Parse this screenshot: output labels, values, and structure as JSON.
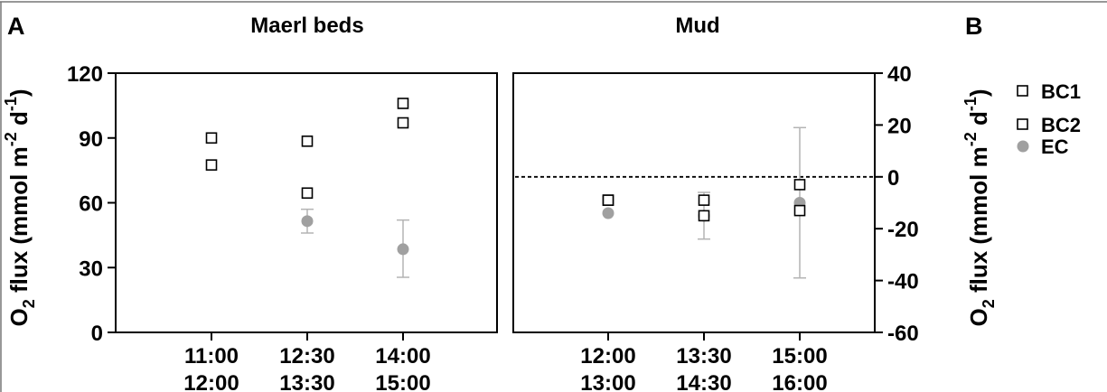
{
  "colors": {
    "ec": "#a0a0a0",
    "errbar": "#b4b4b4",
    "bc": "#000000"
  },
  "chart_data": [
    {
      "type": "scatter",
      "panel_label": "A",
      "title": "Maerl beds",
      "ylabel_parts": [
        "O",
        "2",
        " flux (mmol m",
        "-2",
        " d",
        "-1",
        ")"
      ],
      "ylim": [
        0,
        120
      ],
      "yticks": [
        0,
        30,
        60,
        90,
        120
      ],
      "categories": [
        {
          "line1": "11:00",
          "line2": "12:00"
        },
        {
          "line1": "12:30",
          "line2": "13:30"
        },
        {
          "line1": "14:00",
          "line2": "15:00"
        }
      ],
      "series": [
        {
          "name": "BC1",
          "marker": "square-open",
          "values": [
            77.5,
            64.5,
            97
          ]
        },
        {
          "name": "BC2",
          "marker": "square-open",
          "values": [
            90,
            88.5,
            106
          ]
        },
        {
          "name": "EC",
          "marker": "circle-filled",
          "values": [
            null,
            51.5,
            38.5
          ],
          "err_low": [
            null,
            46,
            25.5
          ],
          "err_high": [
            null,
            57,
            52
          ]
        }
      ]
    },
    {
      "type": "scatter",
      "panel_label": "B",
      "title": "Mud",
      "ylabel_parts": [
        "O",
        "2",
        " flux (mmol m",
        "-2",
        " d",
        "-1",
        ")"
      ],
      "ylim": [
        -60,
        40
      ],
      "yticks": [
        -60,
        -40,
        -20,
        0,
        20,
        40
      ],
      "ytick_labels": [
        "-60",
        "-40",
        "-20",
        "0",
        "20",
        "40"
      ],
      "reference_line": 0,
      "categories": [
        {
          "line1": "12:00",
          "line2": "13:00"
        },
        {
          "line1": "13:30",
          "line2": "14:30"
        },
        {
          "line1": "15:00",
          "line2": "16:00"
        }
      ],
      "series": [
        {
          "name": "BC1",
          "marker": "square-open",
          "values": [
            -9,
            -9,
            -3
          ]
        },
        {
          "name": "BC2",
          "marker": "square-open",
          "values": [
            -9,
            -15,
            -13
          ]
        },
        {
          "name": "EC",
          "marker": "circle-filled",
          "values": [
            -14,
            -15,
            -10
          ],
          "err_low": [
            null,
            -24,
            -39
          ],
          "err_high": [
            null,
            -6,
            19
          ]
        }
      ]
    }
  ],
  "legend": {
    "placement": "right",
    "items": [
      {
        "label": "BC1",
        "marker": "square-open"
      },
      {
        "label": "BC2",
        "marker": "square-open"
      },
      {
        "label": "EC",
        "marker": "circle-filled"
      }
    ]
  }
}
